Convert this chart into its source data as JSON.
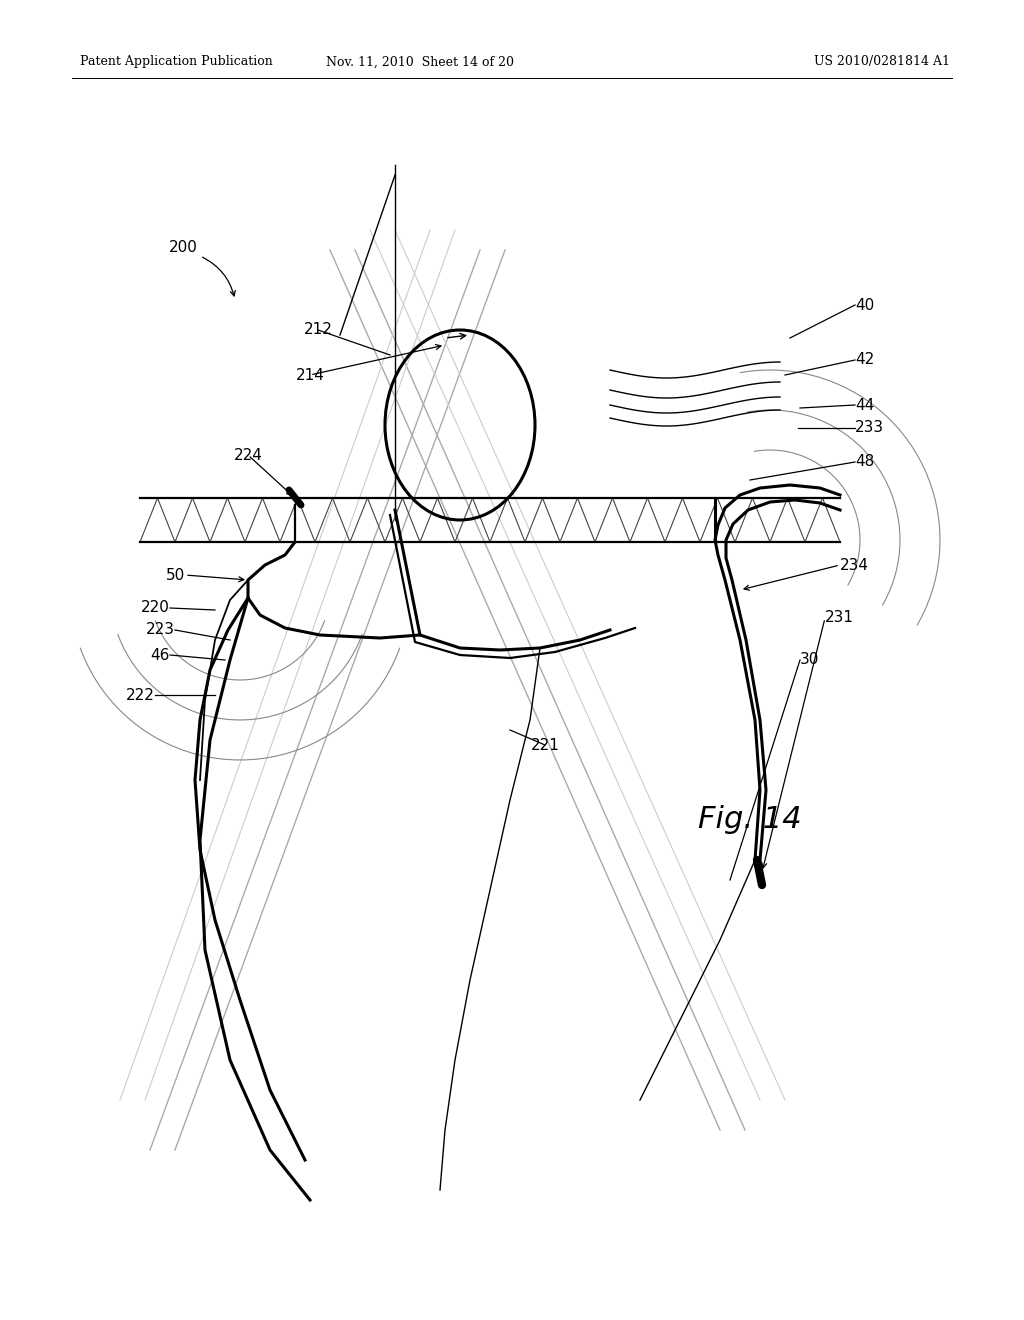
{
  "bg_color": "#ffffff",
  "header_left": "Patent Application Publication",
  "header_mid": "Nov. 11, 2010  Sheet 14 of 20",
  "header_right": "US 2010/0281814 A1",
  "fig_label": "Fig. 14",
  "line_color": "#000000",
  "light_line_color": "#aaaaaa"
}
